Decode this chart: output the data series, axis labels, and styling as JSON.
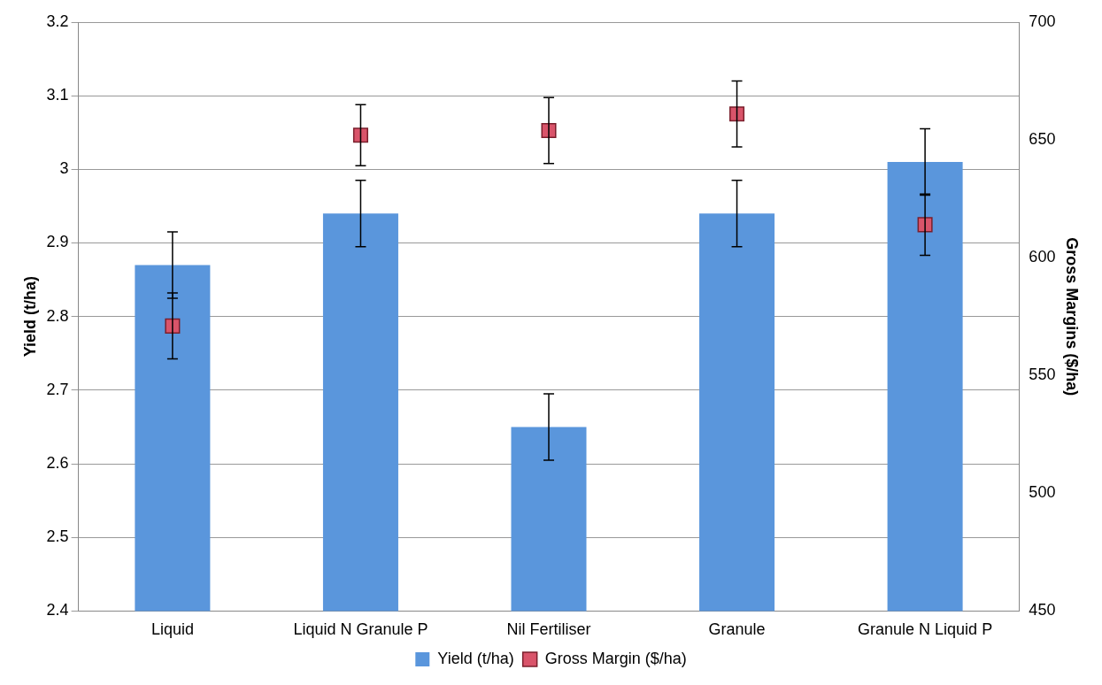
{
  "chart_data": {
    "type": "bar",
    "categories": [
      "Liquid",
      "Liquid N Granule P",
      "Nil Fertiliser",
      "Granule",
      "Granule N Liquid P"
    ],
    "ylabel": "Yield (t/ha)",
    "y2label": "Gross Margins ($/ha)",
    "ylim": [
      2.4,
      3.2
    ],
    "yticks": [
      2.4,
      2.5,
      2.6,
      2.7,
      2.8,
      2.9,
      3,
      3.1,
      3.2
    ],
    "y2lim": [
      450,
      700
    ],
    "y2ticks": [
      450,
      500,
      550,
      600,
      650,
      700
    ],
    "series": [
      {
        "name": "Yield (t/ha)",
        "color": "#5a96dc",
        "values": [
          2.87,
          2.94,
          2.65,
          2.94,
          3.01
        ],
        "errors": [
          0.045,
          0.045,
          0.045,
          0.045,
          0.045
        ]
      },
      {
        "name": "Gross Margin ($/ha)",
        "type": "scatter",
        "axis": "y2",
        "color": "#d9546a",
        "x": [
          "Liquid",
          "Liquid N Granule P",
          "Nil Fertiliser",
          "Granule",
          "Granule N Liquid P"
        ],
        "values": [
          571,
          652,
          654,
          661,
          614
        ],
        "errors": [
          14,
          13,
          14,
          14,
          13
        ]
      }
    ],
    "grid": "y",
    "legend": "bottom",
    "marker": "square"
  }
}
